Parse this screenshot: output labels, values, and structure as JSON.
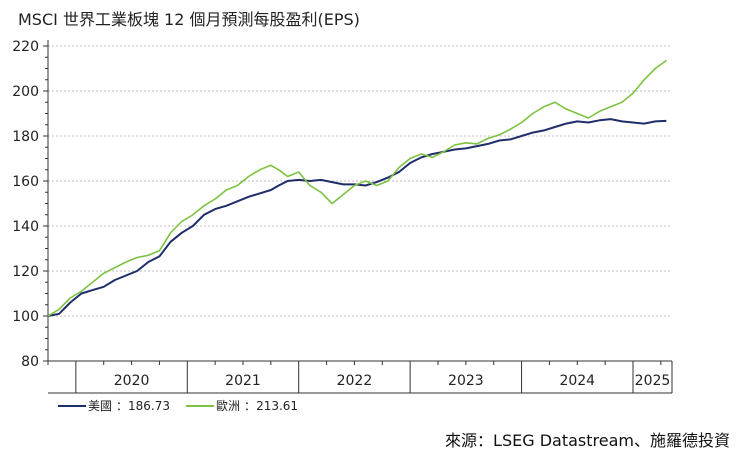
{
  "chart_data": {
    "type": "line",
    "title": "MSCI 世界工業板塊 12 個月預測每股盈利(EPS)",
    "x_ticks": [
      "2020",
      "2021",
      "2022",
      "2023",
      "2024",
      "2025"
    ],
    "ylim": [
      80,
      220
    ],
    "y_ticks": [
      80,
      100,
      120,
      140,
      160,
      180,
      200,
      220
    ],
    "grid": true,
    "legend_position": "bottom-left",
    "series": [
      {
        "name": "美國",
        "last_value_label": "186.73",
        "color": "#1f2d6b",
        "values": [
          [
            2019.75,
            100.0
          ],
          [
            2019.85,
            101.0
          ],
          [
            2019.95,
            106.0
          ],
          [
            2020.05,
            110.0
          ],
          [
            2020.15,
            111.5
          ],
          [
            2020.25,
            113.0
          ],
          [
            2020.35,
            116.0
          ],
          [
            2020.45,
            118.0
          ],
          [
            2020.55,
            120.0
          ],
          [
            2020.65,
            124.0
          ],
          [
            2020.75,
            126.5
          ],
          [
            2020.85,
            133.0
          ],
          [
            2020.95,
            137.0
          ],
          [
            2021.05,
            140.0
          ],
          [
            2021.15,
            145.0
          ],
          [
            2021.25,
            147.5
          ],
          [
            2021.35,
            149.0
          ],
          [
            2021.45,
            151.0
          ],
          [
            2021.55,
            153.0
          ],
          [
            2021.65,
            154.5
          ],
          [
            2021.75,
            156.0
          ],
          [
            2021.82,
            158.0
          ],
          [
            2021.9,
            160.0
          ],
          [
            2022.0,
            160.5
          ],
          [
            2022.1,
            160.0
          ],
          [
            2022.2,
            160.5
          ],
          [
            2022.3,
            159.5
          ],
          [
            2022.4,
            158.5
          ],
          [
            2022.5,
            158.5
          ],
          [
            2022.6,
            158.0
          ],
          [
            2022.7,
            159.5
          ],
          [
            2022.8,
            161.5
          ],
          [
            2022.9,
            164.0
          ],
          [
            2023.0,
            168.0
          ],
          [
            2023.1,
            170.5
          ],
          [
            2023.2,
            172.0
          ],
          [
            2023.3,
            173.0
          ],
          [
            2023.4,
            174.0
          ],
          [
            2023.5,
            174.5
          ],
          [
            2023.6,
            175.5
          ],
          [
            2023.7,
            176.5
          ],
          [
            2023.8,
            178.0
          ],
          [
            2023.9,
            178.5
          ],
          [
            2024.0,
            180.0
          ],
          [
            2024.1,
            181.5
          ],
          [
            2024.2,
            182.5
          ],
          [
            2024.3,
            184.0
          ],
          [
            2024.4,
            185.5
          ],
          [
            2024.5,
            186.5
          ],
          [
            2024.6,
            186.0
          ],
          [
            2024.7,
            187.0
          ],
          [
            2024.8,
            187.5
          ],
          [
            2024.9,
            186.5
          ],
          [
            2025.0,
            186.0
          ],
          [
            2025.1,
            185.5
          ],
          [
            2025.2,
            186.5
          ],
          [
            2025.3,
            186.73
          ]
        ]
      },
      {
        "name": "歐洲",
        "last_value_label": "213.61",
        "color": "#7dc242",
        "values": [
          [
            2019.75,
            100.0
          ],
          [
            2019.85,
            103.0
          ],
          [
            2019.95,
            108.0
          ],
          [
            2020.05,
            111.0
          ],
          [
            2020.15,
            115.0
          ],
          [
            2020.25,
            119.0
          ],
          [
            2020.35,
            121.5
          ],
          [
            2020.45,
            124.0
          ],
          [
            2020.55,
            126.0
          ],
          [
            2020.65,
            127.0
          ],
          [
            2020.75,
            129.0
          ],
          [
            2020.85,
            137.0
          ],
          [
            2020.95,
            142.0
          ],
          [
            2021.05,
            145.0
          ],
          [
            2021.15,
            149.0
          ],
          [
            2021.25,
            152.0
          ],
          [
            2021.35,
            156.0
          ],
          [
            2021.45,
            158.0
          ],
          [
            2021.55,
            162.0
          ],
          [
            2021.65,
            165.0
          ],
          [
            2021.75,
            167.0
          ],
          [
            2021.82,
            165.0
          ],
          [
            2021.9,
            162.0
          ],
          [
            2022.0,
            164.0
          ],
          [
            2022.1,
            158.0
          ],
          [
            2022.2,
            155.0
          ],
          [
            2022.3,
            150.0
          ],
          [
            2022.4,
            154.0
          ],
          [
            2022.5,
            158.0
          ],
          [
            2022.6,
            160.0
          ],
          [
            2022.7,
            158.0
          ],
          [
            2022.8,
            160.0
          ],
          [
            2022.9,
            166.0
          ],
          [
            2023.0,
            170.0
          ],
          [
            2023.1,
            172.0
          ],
          [
            2023.2,
            170.5
          ],
          [
            2023.3,
            173.0
          ],
          [
            2023.4,
            176.0
          ],
          [
            2023.5,
            177.0
          ],
          [
            2023.6,
            176.5
          ],
          [
            2023.7,
            179.0
          ],
          [
            2023.8,
            180.5
          ],
          [
            2023.9,
            183.0
          ],
          [
            2024.0,
            186.0
          ],
          [
            2024.1,
            190.0
          ],
          [
            2024.2,
            193.0
          ],
          [
            2024.3,
            195.0
          ],
          [
            2024.4,
            192.0
          ],
          [
            2024.5,
            190.0
          ],
          [
            2024.6,
            188.0
          ],
          [
            2024.7,
            191.0
          ],
          [
            2024.8,
            193.0
          ],
          [
            2024.9,
            195.0
          ],
          [
            2025.0,
            199.0
          ],
          [
            2025.1,
            205.0
          ],
          [
            2025.2,
            210.0
          ],
          [
            2025.3,
            213.61
          ]
        ]
      }
    ]
  },
  "legend": {
    "sep": "：",
    "items": [
      {
        "label": "美國",
        "value": "186.73",
        "color": "#1f2d6b"
      },
      {
        "label": "歐洲",
        "value": "213.61",
        "color": "#7dc242"
      }
    ]
  },
  "source": "來源：LSEG Datastream、施羅德投資",
  "colors": {
    "axis": "#333333",
    "grid": "#bfbfbf"
  }
}
